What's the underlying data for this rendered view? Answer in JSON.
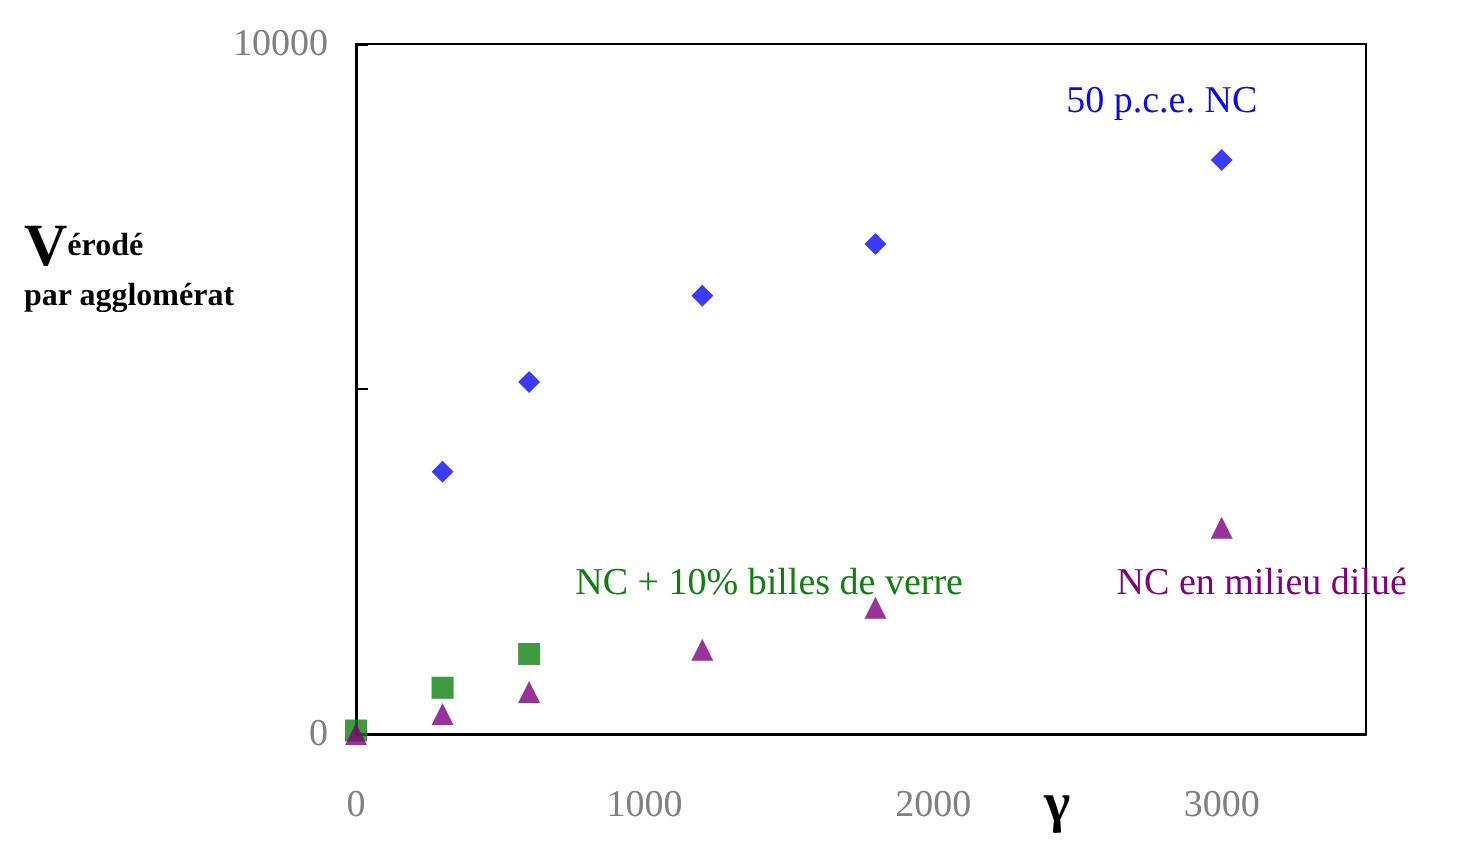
{
  "chart_data": {
    "type": "scatter",
    "xlabel": "γ",
    "ylabel": "V$_{érodé par agglomérat}$",
    "xlim": [
      0,
      3500
    ],
    "xticks": [
      0,
      1000,
      2000,
      3000
    ],
    "ylim": [
      0,
      10000
    ],
    "yticks": [
      0,
      {
        "value": 5000,
        "label": null
      },
      10000
    ],
    "grid": false,
    "legend": false,
    "series": [
      {
        "name": "50 p.c.e. NC",
        "color": "#0a0af0",
        "marker": "diamond",
        "x": [
          300,
          600,
          1200,
          1800,
          3000
        ],
        "values": [
          3800,
          5100,
          6350,
          7100,
          8320
        ]
      },
      {
        "name": "NC + 10% billes de verre",
        "color": "#0f800f",
        "marker": "square",
        "x": [
          0,
          300,
          600
        ],
        "values": [
          50,
          670,
          1160
        ]
      },
      {
        "name": "NC en milieu dilué",
        "color": "#800080",
        "marker": "triangle",
        "x": [
          0,
          300,
          600,
          1200,
          1800,
          3000
        ],
        "values": [
          0,
          290,
          610,
          1220,
          1830,
          2990
        ]
      }
    ]
  }
}
